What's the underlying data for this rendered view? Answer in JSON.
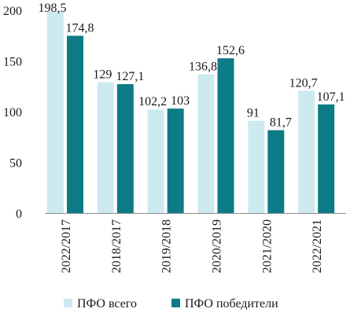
{
  "chart_data": {
    "type": "bar",
    "title": "",
    "xlabel": "",
    "ylabel": "",
    "ylim": [
      0,
      200
    ],
    "yticks": [
      0,
      50,
      100,
      150,
      200
    ],
    "grid": false,
    "legend_position": "bottom",
    "categories": [
      "2022/2017",
      "2018/2017",
      "2019/2018",
      "2020/2019",
      "2021/2020",
      "2022/2021"
    ],
    "series": [
      {
        "name": "ПФО всего",
        "color": "#cdeaf1",
        "values": [
          198.5,
          129,
          102.2,
          136.8,
          91,
          120.7
        ],
        "labels": [
          "198,5",
          "129",
          "102,2",
          "136,8",
          "91",
          "120,7"
        ]
      },
      {
        "name": "ПФО победители",
        "color": "#0d7c86",
        "values": [
          174.8,
          127.1,
          103,
          152.6,
          81.7,
          107.1
        ],
        "labels": [
          "174,8",
          "127,1",
          "103",
          "152,6",
          "81,7",
          "107,1"
        ]
      }
    ]
  }
}
